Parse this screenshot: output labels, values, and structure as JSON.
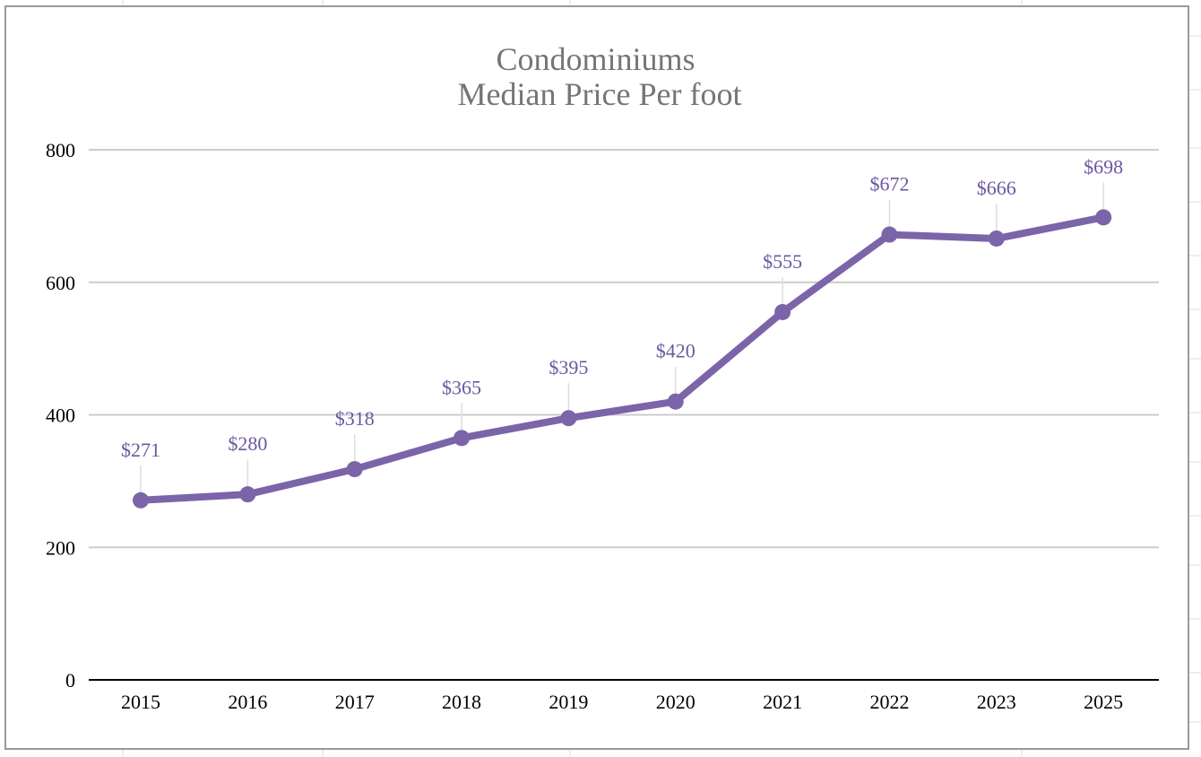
{
  "chart_data": {
    "type": "line",
    "title": [
      "Condominiums",
      "Median Price Per foot"
    ],
    "xlabel": "",
    "ylabel": "",
    "categories": [
      "2015",
      "2016",
      "2017",
      "2018",
      "2019",
      "2020",
      "2021",
      "2022",
      "2023",
      "2025"
    ],
    "series": [
      {
        "values": [
          271,
          280,
          318,
          365,
          395,
          420,
          555,
          672,
          666,
          698
        ],
        "data_labels": [
          "$271",
          "$280",
          "$318",
          "$365",
          "$395",
          "$420",
          "$555",
          "$672",
          "$666",
          "$698"
        ],
        "color": "#7b64a8"
      }
    ],
    "ylim": [
      0,
      800
    ],
    "yticks": [
      "0",
      "200",
      "400",
      "600",
      "800"
    ],
    "grid": true,
    "legend": "none",
    "colors": {
      "line": "#7b64a8",
      "label": "#6b57a0",
      "gridline": "#cccccc",
      "axis": "#000000",
      "title": "#757575",
      "frame": "#9a9a9a"
    }
  }
}
